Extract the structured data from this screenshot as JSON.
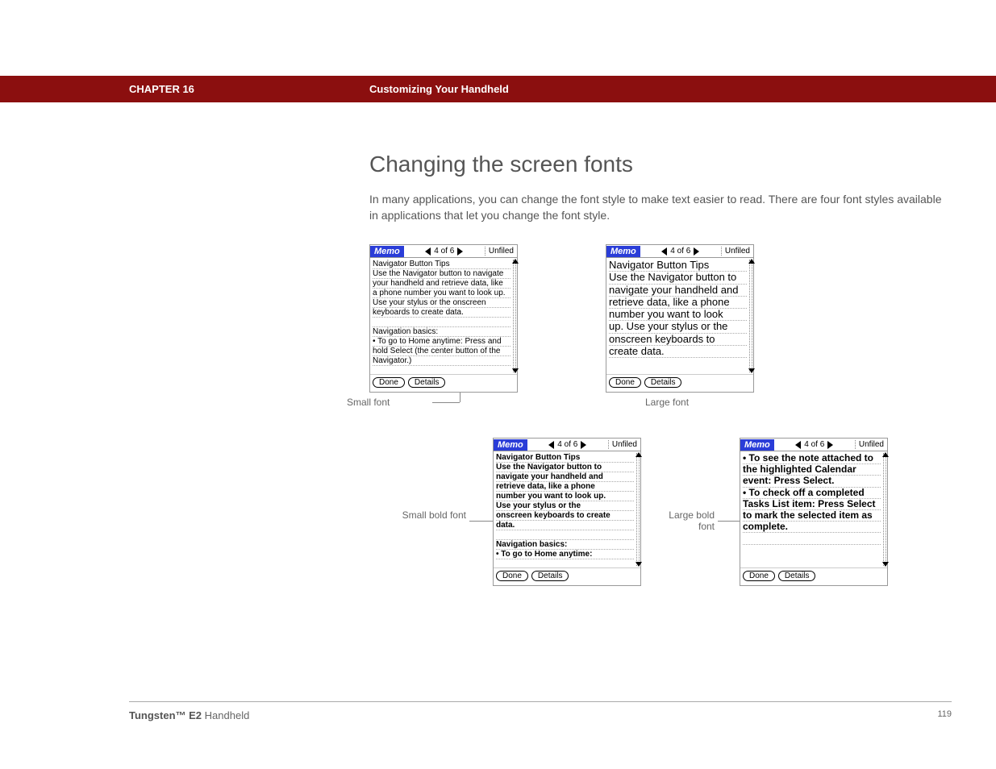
{
  "header": {
    "chapter": "CHAPTER 16",
    "subtitle": "Customizing Your Handheld"
  },
  "heading": "Changing the screen fonts",
  "body": "In many applications, you can change the font style to make text easier to read. There are four font styles available in applications that let you change the font style.",
  "memo_common": {
    "app": "Memo",
    "counter": "4 of 6",
    "category": "Unfiled",
    "done": "Done",
    "details": "Details"
  },
  "panels": {
    "small": {
      "caption": "Small font",
      "lines": [
        "Navigator Button Tips",
        "Use the Navigator button to navigate",
        "your handheld and retrieve data, like",
        "a phone number you want to look up.",
        "Use your stylus or the onscreen",
        "keyboards to create data.",
        "",
        "Navigation basics:",
        "• To go to Home anytime: Press and",
        "hold Select (the center button of the",
        "Navigator.)"
      ]
    },
    "large": {
      "caption": "Large font",
      "lines": [
        "Navigator Button Tips",
        "Use the Navigator button to",
        "navigate your handheld and",
        "retrieve data, like a phone",
        "number you want to look",
        "up. Use your stylus or the",
        "onscreen keyboards to",
        "create data."
      ]
    },
    "small_bold": {
      "caption": "Small bold font",
      "lines": [
        "Navigator Button Tips",
        "Use the Navigator button to",
        "navigate your handheld and",
        "retrieve data, like a phone",
        "number you want to look up.",
        "Use your stylus or the",
        "onscreen keyboards to create",
        "data.",
        "",
        "Navigation basics:",
        "• To go to Home anytime:"
      ]
    },
    "large_bold": {
      "caption": "Large bold font",
      "lines": [
        "• To see the note attached to",
        "the highlighted Calendar",
        "event: Press Select.",
        "• To check off a completed",
        "Tasks List item: Press Select",
        "to mark the selected item as",
        "complete.",
        ""
      ]
    }
  },
  "footer": {
    "product_bold": "Tungsten™ E2",
    "product_rest": " Handheld",
    "page": "119"
  },
  "colors": {
    "header_bg": "#8b0f0f",
    "memo_blue": "#2a3dd8"
  }
}
